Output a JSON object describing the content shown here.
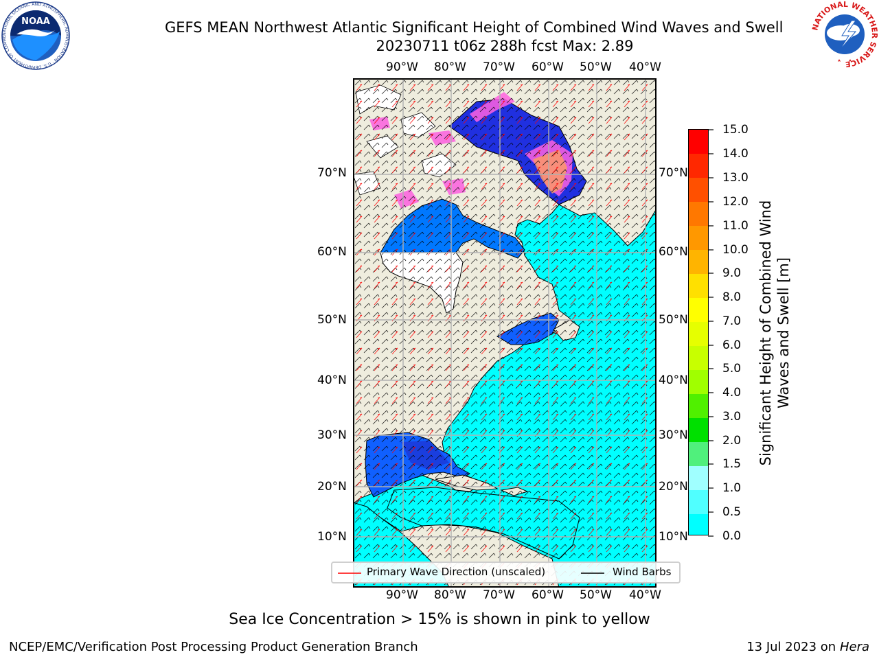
{
  "header": {
    "title_line1": "GEFS MEAN Northwest Atlantic Significant Height of Combined Wind Waves and Swell",
    "title_line2": "20230711 t06z 288h fcst   Max: 2.89"
  },
  "logos": {
    "left": {
      "name": "noaa-logo",
      "text": "NOAA",
      "ring_text": "NATIONAL OCEANIC AND ATMOSPHERIC ADMINISTRATION · U.S. DEPARTMENT OF COMMERCE"
    },
    "right": {
      "name": "nws-logo",
      "ring_text": "NATIONAL WEATHER SERVICE"
    }
  },
  "map": {
    "lon_labels": [
      "90°W",
      "80°W",
      "70°W",
      "60°W",
      "50°W",
      "40°W"
    ],
    "lat_labels": [
      "70°N",
      "60°N",
      "50°N",
      "40°N",
      "30°N",
      "20°N",
      "10°N"
    ],
    "colors": {
      "land": "#efedde",
      "ocean": "#00ffff",
      "grid": "#b0b0b0"
    }
  },
  "legend": {
    "wave_direction": "Primary Wave Direction (unscaled)",
    "wind_barbs": "Wind Barbs",
    "wave_color": "#ff0000",
    "barb_color": "#000000"
  },
  "colorbar": {
    "label": "Significant Height of Combined Wind Waves and Swell [m]",
    "ticks": [
      "15.0",
      "14.0",
      "13.0",
      "12.0",
      "11.0",
      "10.0",
      "9.0",
      "8.0",
      "7.0",
      "6.0",
      "5.0",
      "4.0",
      "3.0",
      "2.0",
      "1.5",
      "1.0",
      "0.5",
      "0.0"
    ],
    "colors_top_to_bottom": [
      "#ff0000",
      "#ff2800",
      "#ff5000",
      "#ff7800",
      "#ff9800",
      "#ffb400",
      "#ffe000",
      "#ffff00",
      "#e6ff00",
      "#c8ff00",
      "#a0ff00",
      "#50f000",
      "#00e000",
      "#50f07c",
      "#a0ffff",
      "#50ffff",
      "#00ffff",
      "#0078ff",
      "#0000ff"
    ]
  },
  "notes": {
    "ice": "Sea Ice Concentration > 15% is shown in pink to yellow"
  },
  "footer": {
    "left": "NCEP/EMC/Verification Post Processing Product Generation Branch",
    "right_prefix": "13 Jul 2023 on ",
    "right_machine": "Hera"
  }
}
